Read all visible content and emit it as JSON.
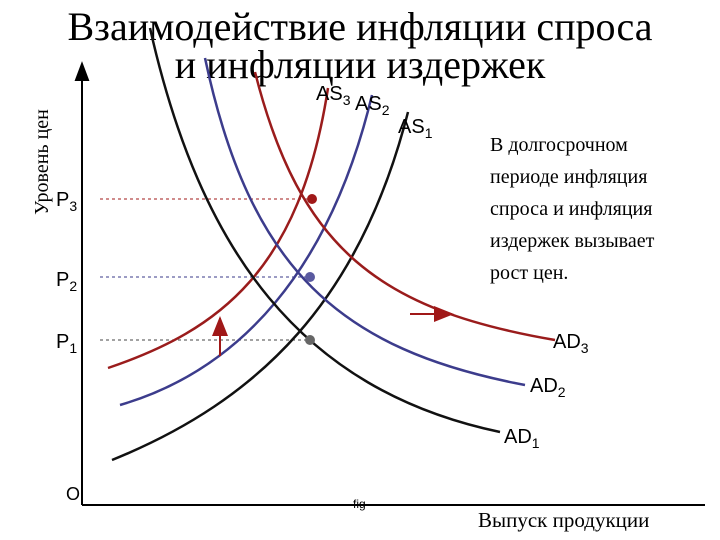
{
  "title": [
    "Взаимодействие инфляции спроса",
    "и инфляции издержек"
  ],
  "y_axis_label": "Уровень цен",
  "x_axis_label": "Выпуск продукции",
  "origin_label": "O",
  "caption": "fig",
  "price_levels": [
    {
      "text": "P",
      "sub": "1"
    },
    {
      "text": "P",
      "sub": "2"
    },
    {
      "text": "P",
      "sub": "3"
    }
  ],
  "supply_curves": [
    {
      "text": "AS",
      "sub": "1"
    },
    {
      "text": "AS",
      "sub": "2"
    },
    {
      "text": "AS",
      "sub": "3"
    }
  ],
  "demand_curves": [
    {
      "text": "AD",
      "sub": "1"
    },
    {
      "text": "AD",
      "sub": "2"
    },
    {
      "text": "AD",
      "sub": "3"
    }
  ],
  "note": [
    "В долгосрочном",
    "периоде инфляция",
    "спроса и инфляция",
    "издержек вызывает",
    "рост цен."
  ]
}
